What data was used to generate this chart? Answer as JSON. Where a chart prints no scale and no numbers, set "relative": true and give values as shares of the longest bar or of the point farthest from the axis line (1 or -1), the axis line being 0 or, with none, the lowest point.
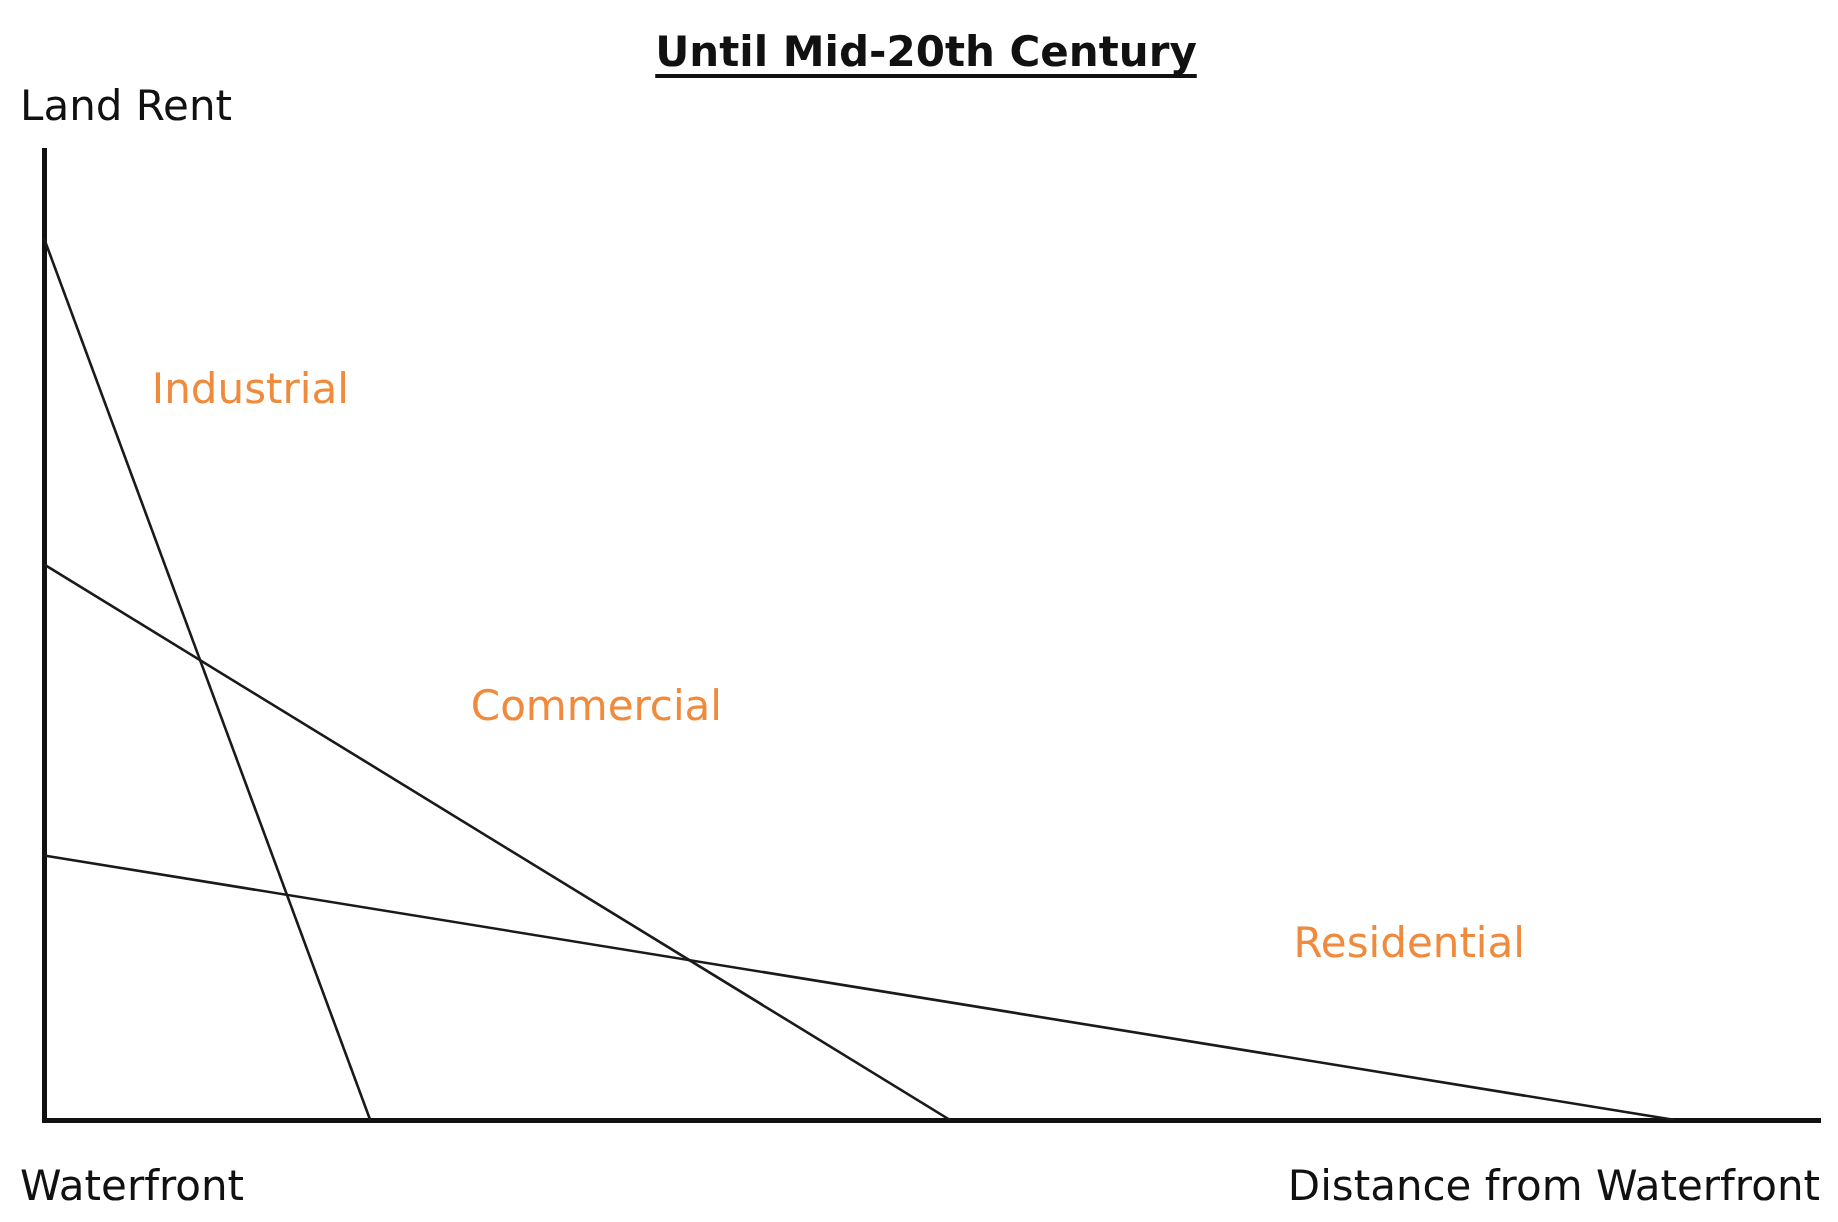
{
  "chart_data": {
    "type": "line",
    "title": "Until Mid-20th Century",
    "xlabel": "Distance from Waterfront",
    "ylabel": "Land Rent",
    "annotations": [
      "Waterfront"
    ],
    "relative": true,
    "grid": false,
    "legend": false,
    "marker": "none",
    "line_style": "solid",
    "categories": [
      null,
      null,
      null,
      null,
      null,
      null,
      null,
      null,
      null,
      null,
      null,
      null,
      null,
      null,
      null,
      null,
      null,
      null,
      null,
      null,
      null,
      null,
      null,
      null,
      null,
      null,
      null,
      null,
      null,
      null,
      null,
      null,
      null,
      null,
      null,
      null,
      null,
      null,
      null,
      null,
      null,
      null,
      null,
      null,
      null,
      null,
      null,
      null,
      null,
      null
    ],
    "series": [
      {
        "name": "Industrial",
        "color": "#1a1a1a",
        "values": [
          1,
          null,
          null,
          null,
          null,
          null,
          null,
          null,
          null,
          0,
          null,
          null,
          null,
          null,
          null,
          null,
          null,
          null,
          null,
          null,
          null,
          null,
          null,
          null,
          null,
          null,
          null,
          null,
          null,
          null,
          null,
          null,
          null,
          null,
          null,
          null,
          null,
          null,
          null,
          null,
          null,
          null,
          null,
          null,
          null,
          null,
          null,
          null,
          null,
          null
        ]
      },
      {
        "name": "Commercial",
        "color": "#1a1a1a",
        "values": [
          0.63,
          null,
          null,
          null,
          null,
          null,
          null,
          null,
          null,
          null,
          null,
          null,
          null,
          null,
          null,
          null,
          null,
          null,
          null,
          null,
          null,
          null,
          null,
          null,
          null,
          0,
          null,
          null,
          null,
          null,
          null,
          null,
          null,
          null,
          null,
          null,
          null,
          null,
          null,
          null,
          null,
          null,
          null,
          null,
          null,
          null,
          null,
          null,
          null,
          null
        ]
      },
      {
        "name": "Residential",
        "color": "#1a1a1a",
        "values": [
          0.3,
          null,
          null,
          null,
          null,
          null,
          null,
          null,
          null,
          null,
          null,
          null,
          null,
          null,
          null,
          null,
          null,
          null,
          null,
          null,
          null,
          null,
          null,
          null,
          null,
          null,
          null,
          null,
          null,
          null,
          null,
          null,
          null,
          null,
          null,
          null,
          null,
          null,
          null,
          null,
          null,
          null,
          null,
          null,
          null,
          0,
          null,
          null,
          null,
          null
        ]
      }
    ]
  }
}
